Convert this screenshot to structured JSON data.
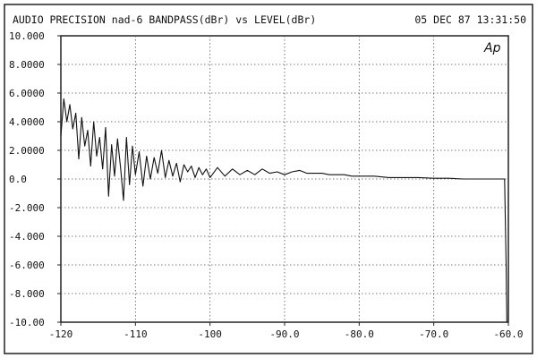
{
  "header": {
    "title": "AUDIO PRECISION nad-6 BANDPASS(dBr) vs LEVEL(dBr)",
    "timestamp": "05 DEC 87 13:31:50",
    "logo_text": "Ap"
  },
  "chart_data": {
    "type": "line",
    "title": "AUDIO PRECISION nad-6 BANDPASS(dBr) vs LEVEL(dBr)",
    "xlabel": "",
    "ylabel": "",
    "xlim": [
      -120,
      -60
    ],
    "ylim": [
      -10,
      10
    ],
    "grid": true,
    "legend": "none",
    "x_ticks": [
      -120,
      -110,
      -100,
      -90,
      -80,
      -70,
      -60
    ],
    "x_tick_labels": [
      "-120",
      "-110",
      "-100",
      "-90.0",
      "-80.0",
      "-70.0",
      "-60.0"
    ],
    "y_ticks": [
      10,
      8,
      6,
      4,
      2,
      0,
      -2,
      -4,
      -6,
      -8,
      -10
    ],
    "y_tick_labels": [
      "10.000",
      "8.0000",
      "6.0000",
      "4.0000",
      "2.0000",
      "0.0",
      "-2.000",
      "-4.000",
      "-6.000",
      "-8.000",
      "-10.00"
    ],
    "series": [
      {
        "x": [
          -120.0,
          -119.6,
          -119.2,
          -118.8,
          -118.4,
          -118.0,
          -117.6,
          -117.2,
          -116.8,
          -116.4,
          -116.0,
          -115.6,
          -115.2,
          -114.8,
          -114.4,
          -114.0,
          -113.6,
          -113.2,
          -112.8,
          -112.4,
          -112.0,
          -111.6,
          -111.2,
          -110.8,
          -110.4,
          -110.0,
          -109.5,
          -109.0,
          -108.5,
          -108.0,
          -107.5,
          -107.0,
          -106.5,
          -106.0,
          -105.5,
          -105.0,
          -104.5,
          -104.0,
          -103.5,
          -103.0,
          -102.5,
          -102.0,
          -101.5,
          -101.0,
          -100.5,
          -100.0,
          -99.0,
          -98.0,
          -97.0,
          -96.0,
          -95.0,
          -94.0,
          -93.0,
          -92.0,
          -91.0,
          -90.0,
          -89.0,
          -88.0,
          -87.0,
          -86.0,
          -85.0,
          -84.0,
          -83.0,
          -82.0,
          -81.0,
          -80.0,
          -78.0,
          -76.0,
          -74.0,
          -72.0,
          -70.0,
          -68.0,
          -66.0,
          -64.0,
          -62.0,
          -60.5,
          -60.3,
          -60.2
        ],
        "y": [
          3.0,
          5.6,
          4.0,
          5.2,
          3.5,
          4.6,
          1.4,
          4.3,
          2.3,
          3.4,
          0.9,
          4.0,
          1.6,
          2.9,
          0.7,
          3.6,
          -1.2,
          2.4,
          0.2,
          2.8,
          0.8,
          -1.5,
          2.9,
          -0.4,
          2.3,
          0.3,
          1.9,
          -0.5,
          1.6,
          0.0,
          1.5,
          0.4,
          2.0,
          0.1,
          1.3,
          0.2,
          1.1,
          -0.2,
          1.0,
          0.5,
          0.9,
          0.1,
          0.8,
          0.3,
          0.7,
          0.1,
          0.8,
          0.2,
          0.7,
          0.3,
          0.6,
          0.3,
          0.7,
          0.4,
          0.5,
          0.3,
          0.5,
          0.6,
          0.4,
          0.4,
          0.4,
          0.3,
          0.3,
          0.3,
          0.2,
          0.2,
          0.2,
          0.1,
          0.1,
          0.1,
          0.05,
          0.05,
          0.0,
          0.0,
          0.0,
          0.0,
          -6.0,
          -10.0
        ]
      }
    ]
  }
}
